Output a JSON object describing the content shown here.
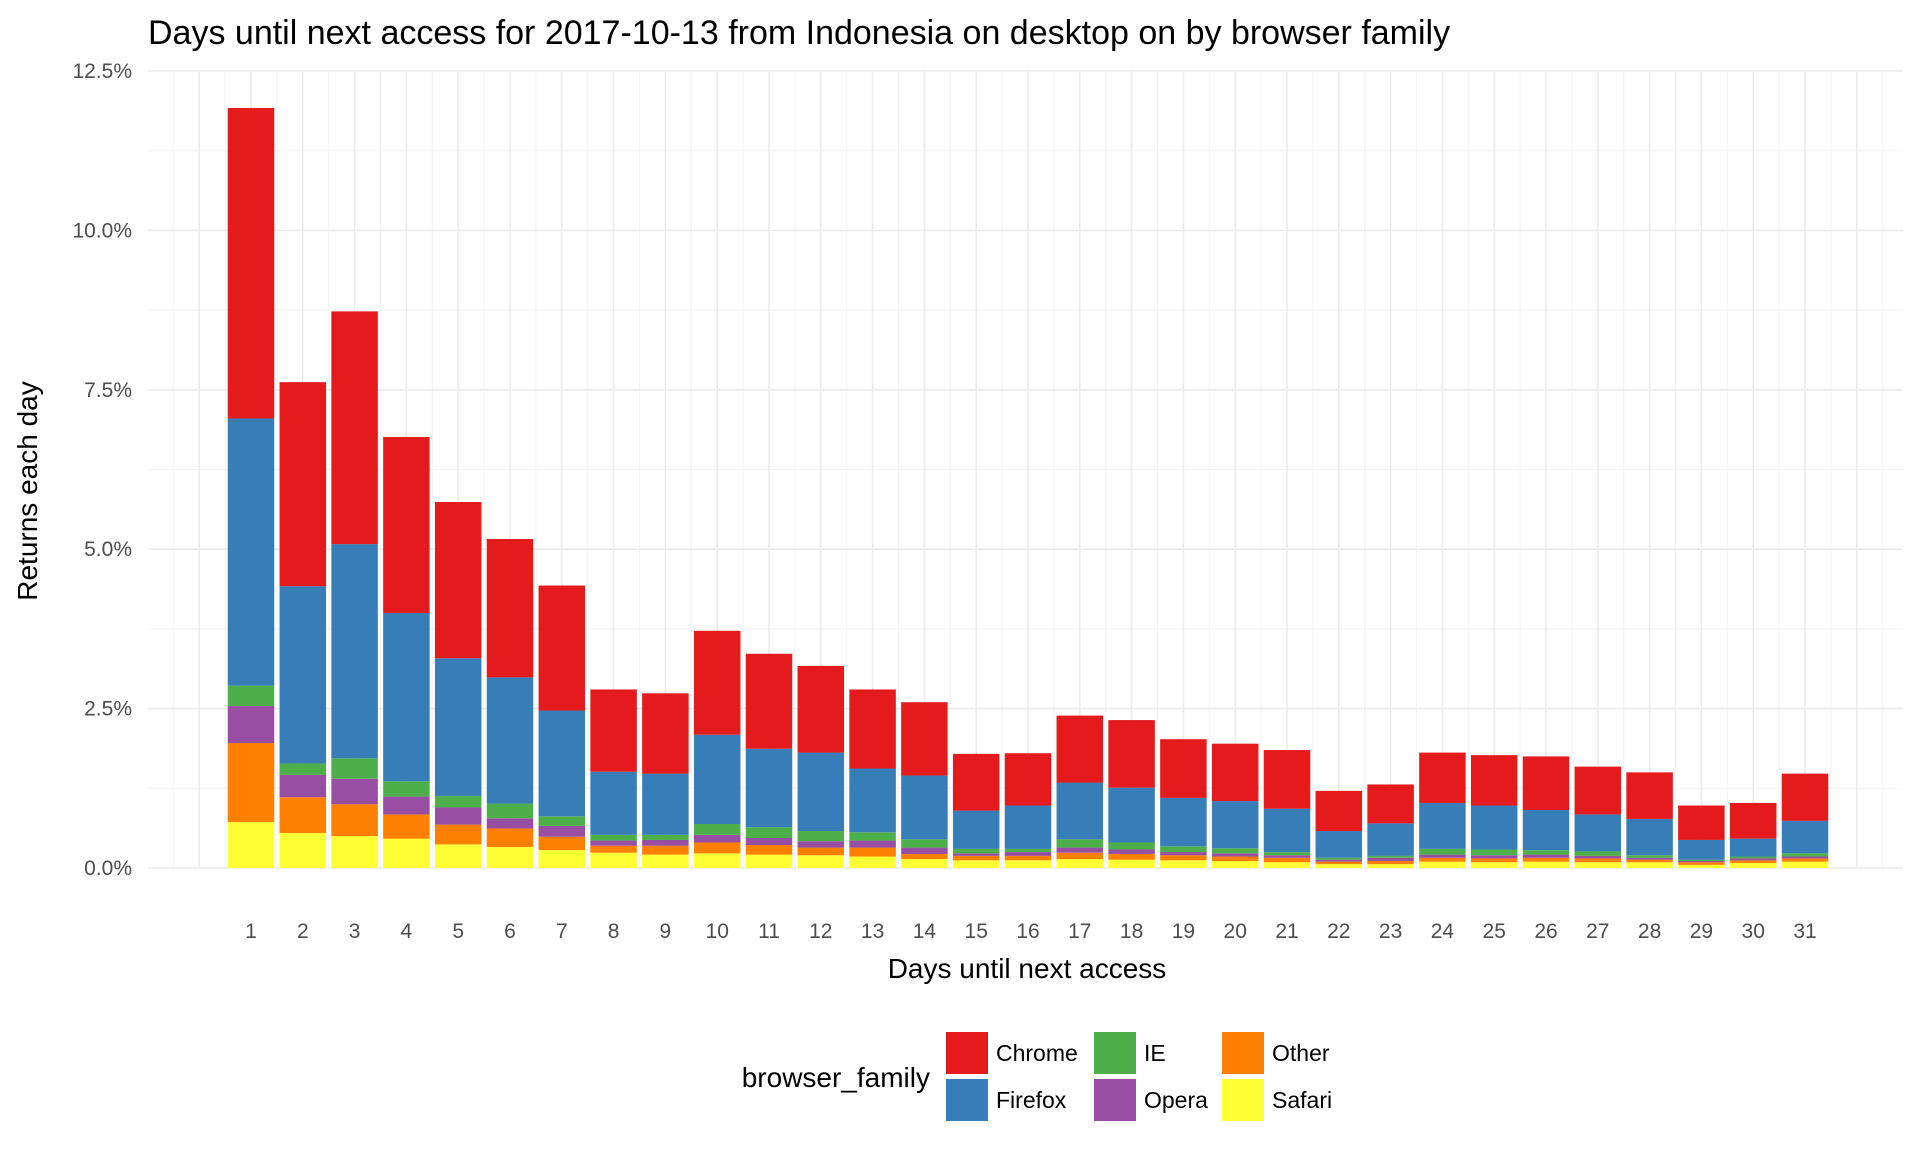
{
  "chart_data": {
    "type": "bar",
    "stacked": true,
    "title": "Days until next access for 2017-10-13 from Indonesia on desktop on by browser family",
    "xlabel": "Days until next access",
    "ylabel": "Returns each day",
    "ylim": [
      0,
      12.5
    ],
    "y_ticks": [
      "0.0%",
      "2.5%",
      "5.0%",
      "7.5%",
      "10.0%",
      "12.5%"
    ],
    "y_tick_values": [
      0,
      2.5,
      5,
      7.5,
      10,
      12.5
    ],
    "grid": true,
    "legend_position": "bottom",
    "legend_title": "browser_family",
    "categories": [
      "1",
      "2",
      "3",
      "4",
      "5",
      "6",
      "7",
      "8",
      "9",
      "10",
      "11",
      "12",
      "13",
      "14",
      "15",
      "16",
      "17",
      "18",
      "19",
      "20",
      "21",
      "22",
      "23",
      "24",
      "25",
      "26",
      "27",
      "28",
      "29",
      "30",
      "31"
    ],
    "series": [
      {
        "name": "Safari",
        "color": "#ffff33",
        "values": [
          0.72,
          0.55,
          0.5,
          0.46,
          0.37,
          0.33,
          0.28,
          0.24,
          0.21,
          0.23,
          0.21,
          0.2,
          0.18,
          0.14,
          0.12,
          0.12,
          0.14,
          0.13,
          0.12,
          0.11,
          0.09,
          0.06,
          0.06,
          0.1,
          0.09,
          0.1,
          0.09,
          0.09,
          0.05,
          0.08,
          0.1
        ]
      },
      {
        "name": "Other",
        "color": "#ff7f00",
        "values": [
          1.24,
          0.56,
          0.5,
          0.38,
          0.31,
          0.29,
          0.21,
          0.11,
          0.14,
          0.17,
          0.15,
          0.12,
          0.14,
          0.08,
          0.07,
          0.07,
          0.1,
          0.09,
          0.08,
          0.07,
          0.07,
          0.04,
          0.05,
          0.06,
          0.06,
          0.06,
          0.06,
          0.04,
          0.04,
          0.04,
          0.05
        ]
      },
      {
        "name": "Opera",
        "color": "#984ea3",
        "values": [
          0.58,
          0.35,
          0.4,
          0.28,
          0.27,
          0.16,
          0.17,
          0.08,
          0.09,
          0.12,
          0.11,
          0.1,
          0.11,
          0.1,
          0.04,
          0.06,
          0.08,
          0.07,
          0.05,
          0.05,
          0.04,
          0.03,
          0.05,
          0.05,
          0.05,
          0.05,
          0.04,
          0.03,
          0.02,
          0.03,
          0.03
        ]
      },
      {
        "name": "IE",
        "color": "#4daf4a",
        "values": [
          0.32,
          0.18,
          0.32,
          0.24,
          0.18,
          0.23,
          0.15,
          0.09,
          0.08,
          0.17,
          0.17,
          0.16,
          0.13,
          0.13,
          0.07,
          0.05,
          0.13,
          0.11,
          0.09,
          0.08,
          0.05,
          0.03,
          0.03,
          0.09,
          0.09,
          0.07,
          0.07,
          0.04,
          0.02,
          0.03,
          0.05
        ]
      },
      {
        "name": "Firefox",
        "color": "#377eb8",
        "values": [
          4.19,
          2.78,
          3.36,
          2.64,
          2.16,
          1.98,
          1.66,
          0.99,
          0.96,
          1.4,
          1.23,
          1.23,
          1.0,
          1.0,
          0.6,
          0.68,
          0.89,
          0.86,
          0.76,
          0.74,
          0.68,
          0.42,
          0.51,
          0.72,
          0.69,
          0.63,
          0.58,
          0.57,
          0.31,
          0.28,
          0.51
        ]
      },
      {
        "name": "Chrome",
        "color": "#e41a1c",
        "values": [
          4.87,
          3.2,
          3.65,
          2.76,
          2.45,
          2.17,
          1.96,
          1.29,
          1.26,
          1.63,
          1.49,
          1.36,
          1.24,
          1.15,
          0.89,
          0.82,
          1.05,
          1.06,
          0.92,
          0.9,
          0.92,
          0.63,
          0.61,
          0.79,
          0.79,
          0.84,
          0.75,
          0.73,
          0.54,
          0.56,
          0.74
        ]
      }
    ]
  },
  "legend_order": [
    "Chrome",
    "Firefox",
    "IE",
    "Opera",
    "Other",
    "Safari"
  ]
}
